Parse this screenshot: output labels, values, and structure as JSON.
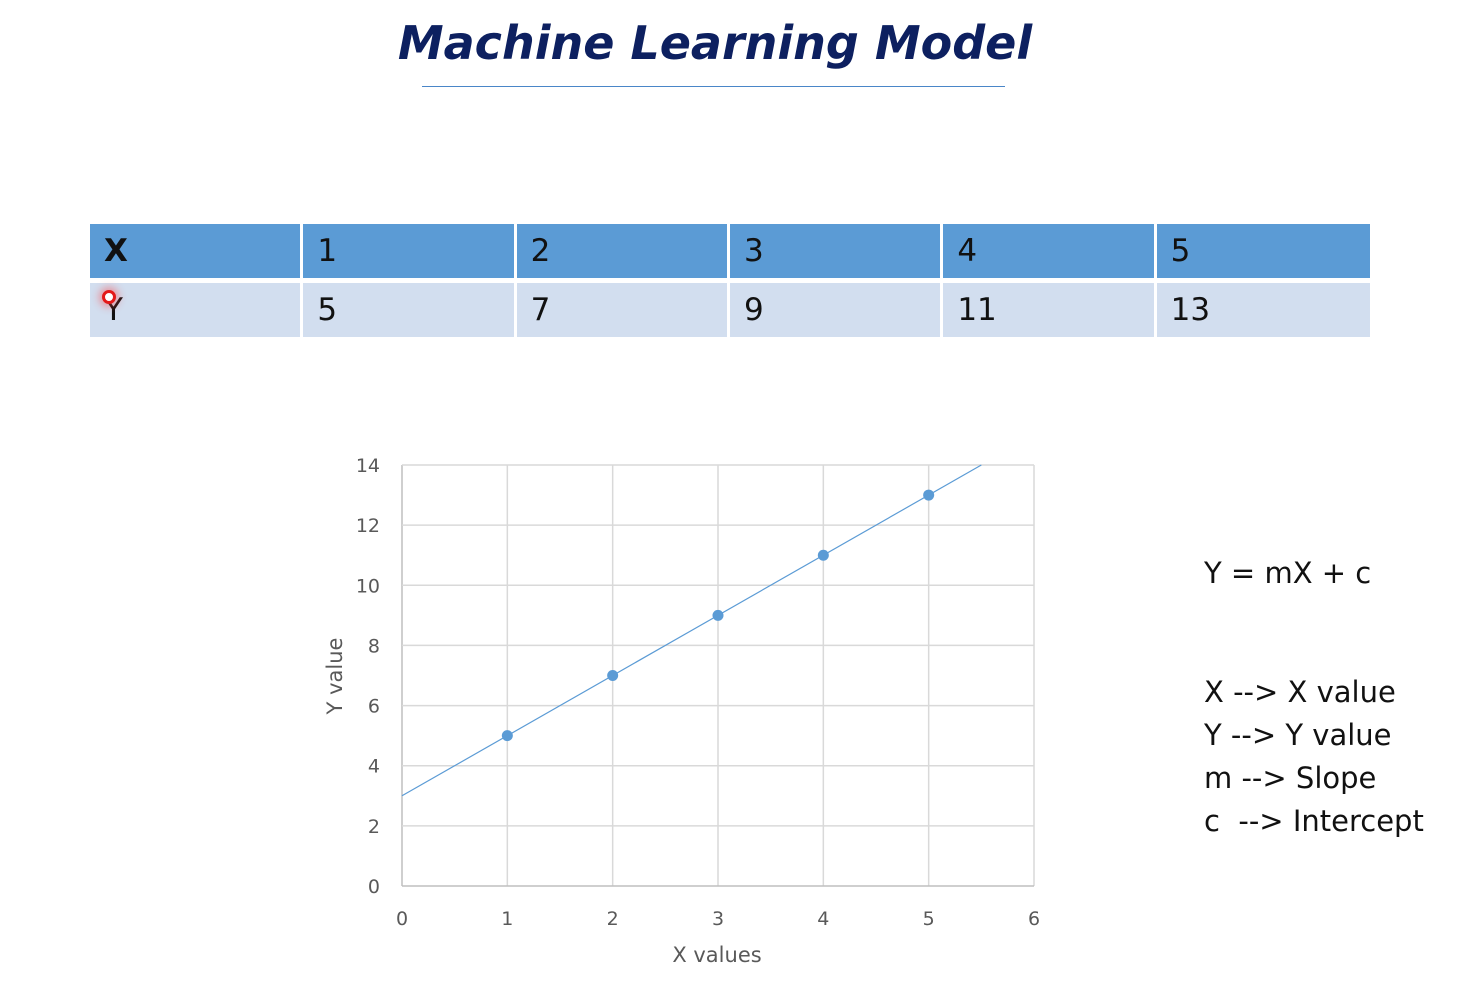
{
  "title": "Machine Learning Model",
  "table": {
    "header_label": "X",
    "row_label": "Y",
    "x_values": [
      "1",
      "2",
      "3",
      "4",
      "5"
    ],
    "y_values": [
      "5",
      "7",
      "9",
      "11",
      "13"
    ]
  },
  "chart_data": {
    "type": "scatter",
    "x": [
      1,
      2,
      3,
      4,
      5
    ],
    "y": [
      5,
      7,
      9,
      11,
      13
    ],
    "xlabel": "X values",
    "ylabel": "Y value",
    "xlim": [
      0,
      6
    ],
    "ylim": [
      0,
      14
    ],
    "xticks": [
      0,
      1,
      2,
      3,
      4,
      5,
      6
    ],
    "yticks": [
      0,
      2,
      4,
      6,
      8,
      10,
      12,
      14
    ],
    "grid": true,
    "trendline": {
      "slope": 2,
      "intercept": 3,
      "x_range": [
        0,
        5.5
      ]
    },
    "point_color": "#5b9bd5",
    "line_color": "#5b9bd5"
  },
  "notes": {
    "equation": "Y = mX + c",
    "legend_lines": [
      "X --> X value",
      "Y --> Y value",
      "m --> Slope",
      "c  --> Intercept"
    ]
  }
}
